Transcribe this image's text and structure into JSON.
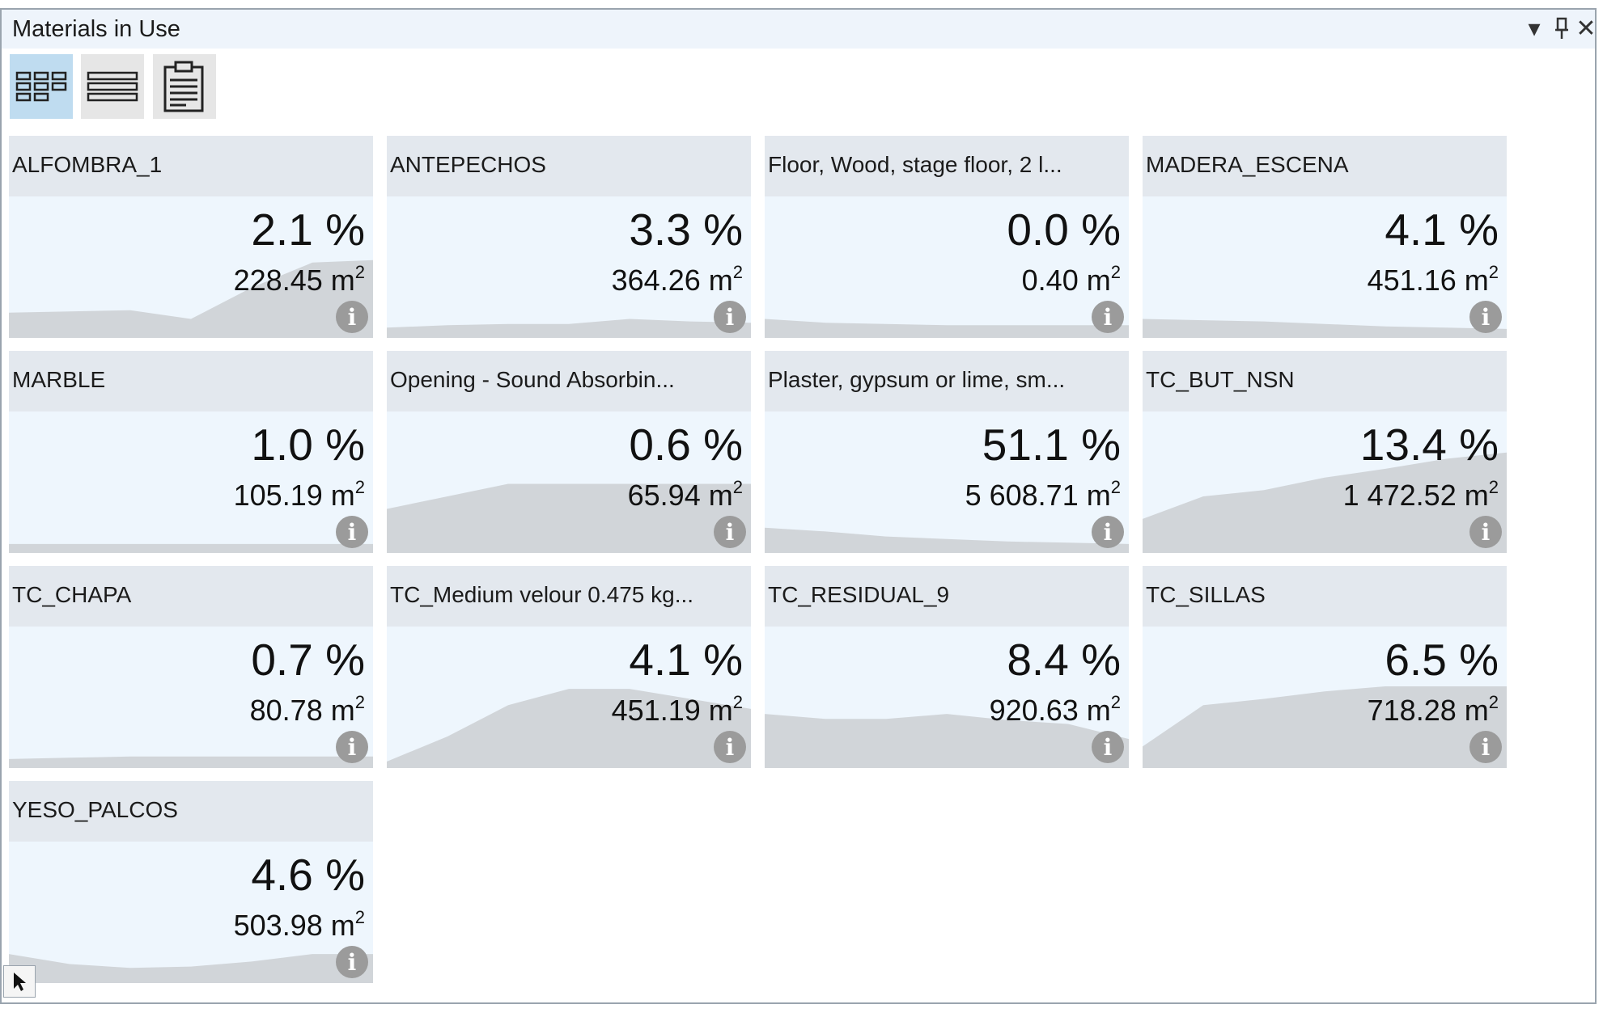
{
  "panel": {
    "title": "Materials in Use",
    "controls": {
      "dropdown": "▾",
      "pin": "⊥",
      "close": "✕"
    }
  },
  "toolbar": {
    "buttons": [
      {
        "icon": "tile-view-icon",
        "active": true
      },
      {
        "icon": "list-view-icon",
        "active": false
      },
      {
        "icon": "clipboard-icon",
        "active": false
      }
    ]
  },
  "tiles": [
    {
      "name": "ALFOMBRA_1",
      "percent": "2.1 %",
      "area": "228.45",
      "unit": "m",
      "sup": "2",
      "trend": [
        0.15,
        0.16,
        0.17,
        0.1,
        0.35,
        0.55,
        0.57
      ]
    },
    {
      "name": "ANTEPECHOS",
      "percent": "3.3 %",
      "area": "364.26",
      "unit": "m",
      "sup": "2",
      "trend": [
        0.03,
        0.05,
        0.06,
        0.06,
        0.1,
        0.08,
        0.07
      ]
    },
    {
      "name": "Floor, Wood, stage floor, 2 l...",
      "percent": "0.0 %",
      "area": "0.40",
      "unit": "m",
      "sup": "2",
      "trend": [
        0.1,
        0.07,
        0.06,
        0.05,
        0.05,
        0.05,
        0.05
      ]
    },
    {
      "name": "MADERA_ESCENA",
      "percent": "4.1 %",
      "area": "451.16",
      "unit": "m",
      "sup": "2",
      "trend": [
        0.1,
        0.09,
        0.08,
        0.06,
        0.04,
        0.03,
        0.02
      ]
    },
    {
      "name": "MARBLE",
      "percent": "1.0 %",
      "area": "105.19",
      "unit": "m",
      "sup": "2",
      "trend": [
        0.02,
        0.02,
        0.02,
        0.02,
        0.02,
        0.02,
        0.02
      ]
    },
    {
      "name": "Opening - Sound Absorbin...",
      "percent": "0.6 %",
      "area": "65.94",
      "unit": "m",
      "sup": "2",
      "trend": [
        0.3,
        0.4,
        0.5,
        0.5,
        0.5,
        0.5,
        0.5
      ]
    },
    {
      "name": "Plaster, gypsum or lime, sm...",
      "percent": "51.1 %",
      "area": "5 608.71",
      "unit": "m",
      "sup": "2",
      "trend": [
        0.15,
        0.12,
        0.08,
        0.06,
        0.04,
        0.03,
        0.02
      ]
    },
    {
      "name": "TC_BUT_NSN",
      "percent": "13.4 %",
      "area": "1 472.52",
      "unit": "m",
      "sup": "2",
      "trend": [
        0.22,
        0.4,
        0.45,
        0.55,
        0.62,
        0.7,
        0.75
      ]
    },
    {
      "name": "TC_CHAPA",
      "percent": "0.7 %",
      "area": "80.78",
      "unit": "m",
      "sup": "2",
      "trend": [
        0.02,
        0.03,
        0.04,
        0.04,
        0.04,
        0.04,
        0.04
      ]
    },
    {
      "name": "TC_Medium velour 0.475 kg...",
      "percent": "4.1 %",
      "area": "451.19",
      "unit": "m",
      "sup": "2",
      "trend": [
        0.0,
        0.2,
        0.45,
        0.58,
        0.58,
        0.5,
        0.42
      ]
    },
    {
      "name": "TC_RESIDUAL_9",
      "percent": "8.4 %",
      "area": "920.63",
      "unit": "m",
      "sup": "2",
      "trend": [
        0.38,
        0.34,
        0.34,
        0.38,
        0.33,
        0.3,
        0.18
      ]
    },
    {
      "name": "TC_SILLAS",
      "percent": "6.5 %",
      "area": "718.28",
      "unit": "m",
      "sup": "2",
      "trend": [
        0.12,
        0.45,
        0.5,
        0.56,
        0.6,
        0.6,
        0.6
      ]
    },
    {
      "name": "YESO_PALCOS",
      "percent": "4.6 %",
      "area": "503.98",
      "unit": "m",
      "sup": "2",
      "trend": [
        0.18,
        0.1,
        0.07,
        0.08,
        0.12,
        0.18,
        0.18
      ]
    }
  ],
  "colors": {
    "tile_bg": "#eef6fd",
    "tile_header": "#e3e8ee",
    "sparkline": "#d1d5d9",
    "info_icon": "#9b9b9b",
    "active_toolbar": "#bfdcf0"
  }
}
